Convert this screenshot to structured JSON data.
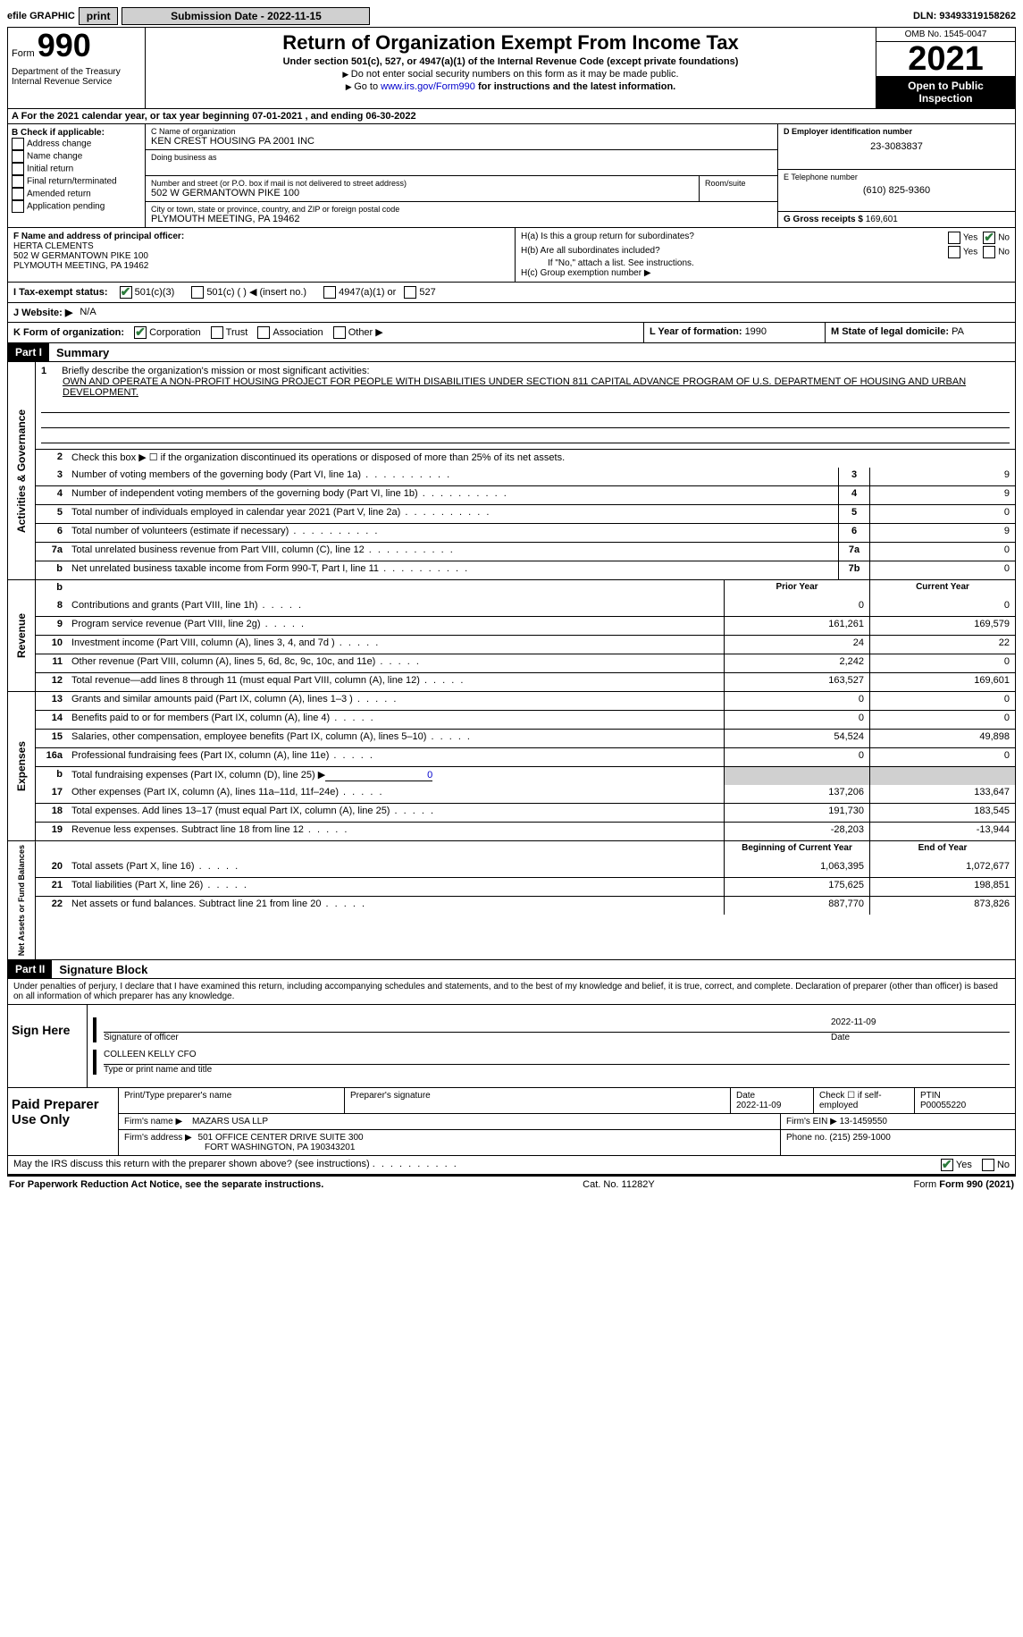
{
  "top": {
    "efile_label": "efile GRAPHIC",
    "print_btn": "print",
    "submission_label": "Submission Date - 2022-11-15",
    "dln_label": "DLN: 93493319158262"
  },
  "header": {
    "form_word": "Form",
    "form_number": "990",
    "dept": "Department of the Treasury",
    "irs": "Internal Revenue Service",
    "title": "Return of Organization Exempt From Income Tax",
    "subtitle": "Under section 501(c), 527, or 4947(a)(1) of the Internal Revenue Code (except private foundations)",
    "note1": "Do not enter social security numbers on this form as it may be made public.",
    "note2_pre": "Go to ",
    "note2_link": "www.irs.gov/Form990",
    "note2_post": " for instructions and the latest information.",
    "omb": "OMB No. 1545-0047",
    "year": "2021",
    "inspection": "Open to Public Inspection"
  },
  "section_a": "A For the 2021 calendar year, or tax year beginning 07-01-2021   , and ending 06-30-2022",
  "col_b": {
    "header": "B Check if applicable:",
    "opts": [
      "Address change",
      "Name change",
      "Initial return",
      "Final return/terminated",
      "Amended return",
      "Application pending"
    ]
  },
  "col_c": {
    "name_label": "C Name of organization",
    "name": "KEN CREST HOUSING PA 2001 INC",
    "dba_label": "Doing business as",
    "street_label": "Number and street (or P.O. box if mail is not delivered to street address)",
    "room_label": "Room/suite",
    "street": "502 W GERMANTOWN PIKE 100",
    "city_label": "City or town, state or province, country, and ZIP or foreign postal code",
    "city": "PLYMOUTH MEETING, PA  19462"
  },
  "col_de": {
    "d_label": "D Employer identification number",
    "ein": "23-3083837",
    "e_label": "E Telephone number",
    "phone": "(610) 825-9360",
    "g_label": "G Gross receipts $",
    "gross": "169,601"
  },
  "col_f": {
    "label": "F Name and address of principal officer:",
    "name": "HERTA CLEMENTS",
    "addr1": "502 W GERMANTOWN PIKE 100",
    "addr2": "PLYMOUTH MEETING, PA  19462"
  },
  "col_h": {
    "ha": "H(a)  Is this a group return for subordinates?",
    "hb": "H(b)  Are all subordinates included?",
    "hb_note": "If \"No,\" attach a list. See instructions.",
    "hc": "H(c)  Group exemption number ▶",
    "yes": "Yes",
    "no": "No"
  },
  "row_i": {
    "label": "I    Tax-exempt status:",
    "o1": "501(c)(3)",
    "o2": "501(c) (   ) ◀ (insert no.)",
    "o3": "4947(a)(1) or",
    "o4": "527"
  },
  "row_j": {
    "label": "J   Website: ▶",
    "value": "N/A"
  },
  "row_k": {
    "label": "K Form of organization:",
    "o1": "Corporation",
    "o2": "Trust",
    "o3": "Association",
    "o4": "Other ▶"
  },
  "row_l": {
    "label": "L Year of formation: ",
    "value": "1990"
  },
  "row_m": {
    "label": "M State of legal domicile: ",
    "value": "PA"
  },
  "part1": {
    "header": "Part I",
    "title": "Summary"
  },
  "mission": {
    "num": "1",
    "label": "Briefly describe the organization's mission or most significant activities:",
    "text": "OWN AND OPERATE A NON-PROFIT HOUSING PROJECT FOR PEOPLE WITH DISABILITIES UNDER SECTION 811 CAPITAL ADVANCE PROGRAM OF U.S. DEPARTMENT OF HOUSING AND URBAN DEVELOPMENT."
  },
  "line2": {
    "num": "2",
    "text": "Check this box ▶ ☐ if the organization discontinued its operations or disposed of more than 25% of its net assets."
  },
  "gov_lines": [
    {
      "n": "3",
      "d": "Number of voting members of the governing body (Part VI, line 1a)",
      "b": "3",
      "v": "9"
    },
    {
      "n": "4",
      "d": "Number of independent voting members of the governing body (Part VI, line 1b)",
      "b": "4",
      "v": "9"
    },
    {
      "n": "5",
      "d": "Total number of individuals employed in calendar year 2021 (Part V, line 2a)",
      "b": "5",
      "v": "0"
    },
    {
      "n": "6",
      "d": "Total number of volunteers (estimate if necessary)",
      "b": "6",
      "v": "9"
    },
    {
      "n": "7a",
      "d": "Total unrelated business revenue from Part VIII, column (C), line 12",
      "b": "7a",
      "v": "0"
    },
    {
      "n": "b",
      "d": "Net unrelated business taxable income from Form 990-T, Part I, line 11",
      "b": "7b",
      "v": "0"
    }
  ],
  "side_gov": "Activities & Governance",
  "side_rev": "Revenue",
  "side_exp": "Expenses",
  "side_net": "Net Assets or Fund Balances",
  "col_headers": {
    "prior": "Prior Year",
    "current": "Current Year"
  },
  "rev_lines": [
    {
      "n": "8",
      "d": "Contributions and grants (Part VIII, line 1h)",
      "p": "0",
      "c": "0"
    },
    {
      "n": "9",
      "d": "Program service revenue (Part VIII, line 2g)",
      "p": "161,261",
      "c": "169,579"
    },
    {
      "n": "10",
      "d": "Investment income (Part VIII, column (A), lines 3, 4, and 7d )",
      "p": "24",
      "c": "22"
    },
    {
      "n": "11",
      "d": "Other revenue (Part VIII, column (A), lines 5, 6d, 8c, 9c, 10c, and 11e)",
      "p": "2,242",
      "c": "0"
    },
    {
      "n": "12",
      "d": "Total revenue—add lines 8 through 11 (must equal Part VIII, column (A), line 12)",
      "p": "163,527",
      "c": "169,601"
    }
  ],
  "exp_lines": [
    {
      "n": "13",
      "d": "Grants and similar amounts paid (Part IX, column (A), lines 1–3 )",
      "p": "0",
      "c": "0"
    },
    {
      "n": "14",
      "d": "Benefits paid to or for members (Part IX, column (A), line 4)",
      "p": "0",
      "c": "0"
    },
    {
      "n": "15",
      "d": "Salaries, other compensation, employee benefits (Part IX, column (A), lines 5–10)",
      "p": "54,524",
      "c": "49,898"
    },
    {
      "n": "16a",
      "d": "Professional fundraising fees (Part IX, column (A), line 11e)",
      "p": "0",
      "c": "0"
    }
  ],
  "line16b": {
    "n": "b",
    "d": "Total fundraising expenses (Part IX, column (D), line 25) ▶",
    "v": "0"
  },
  "exp_lines2": [
    {
      "n": "17",
      "d": "Other expenses (Part IX, column (A), lines 11a–11d, 11f–24e)",
      "p": "137,206",
      "c": "133,647"
    },
    {
      "n": "18",
      "d": "Total expenses. Add lines 13–17 (must equal Part IX, column (A), line 25)",
      "p": "191,730",
      "c": "183,545"
    },
    {
      "n": "19",
      "d": "Revenue less expenses. Subtract line 18 from line 12",
      "p": "-28,203",
      "c": "-13,944"
    }
  ],
  "net_headers": {
    "begin": "Beginning of Current Year",
    "end": "End of Year"
  },
  "net_lines": [
    {
      "n": "20",
      "d": "Total assets (Part X, line 16)",
      "p": "1,063,395",
      "c": "1,072,677"
    },
    {
      "n": "21",
      "d": "Total liabilities (Part X, line 26)",
      "p": "175,625",
      "c": "198,851"
    },
    {
      "n": "22",
      "d": "Net assets or fund balances. Subtract line 21 from line 20",
      "p": "887,770",
      "c": "873,826"
    }
  ],
  "part2": {
    "header": "Part II",
    "title": "Signature Block"
  },
  "penalties": "Under penalties of perjury, I declare that I have examined this return, including accompanying schedules and statements, and to the best of my knowledge and belief, it is true, correct, and complete. Declaration of preparer (other than officer) is based on all information of which preparer has any knowledge.",
  "sign": {
    "here": "Sign Here",
    "sig_label": "Signature of officer",
    "date_label": "Date",
    "date": "2022-11-09",
    "name": "COLLEEN KELLY CFO",
    "name_label": "Type or print name and title"
  },
  "prep": {
    "header": "Paid Preparer Use Only",
    "name_lbl": "Print/Type preparer's name",
    "sig_lbl": "Preparer's signature",
    "date_lbl": "Date",
    "date": "2022-11-09",
    "check_lbl": "Check ☐ if self-employed",
    "ptin_lbl": "PTIN",
    "ptin": "P00055220",
    "firm_name_lbl": "Firm's name      ▶",
    "firm_name": "MAZARS USA LLP",
    "firm_ein_lbl": "Firm's EIN ▶",
    "firm_ein": "13-1459550",
    "firm_addr_lbl": "Firm's address ▶",
    "firm_addr1": "501 OFFICE CENTER DRIVE SUITE 300",
    "firm_addr2": "FORT WASHINGTON, PA  190343201",
    "phone_lbl": "Phone no.",
    "phone": "(215) 259-1000"
  },
  "discuss": {
    "text": "May the IRS discuss this return with the preparer shown above? (see instructions)",
    "yes": "Yes",
    "no": "No"
  },
  "footer": {
    "paperwork": "For Paperwork Reduction Act Notice, see the separate instructions.",
    "cat": "Cat. No. 11282Y",
    "form": "Form 990 (2021)"
  },
  "colors": {
    "link": "#0000cc",
    "check": "#2a7a3a",
    "gray": "#d0d0d0"
  }
}
